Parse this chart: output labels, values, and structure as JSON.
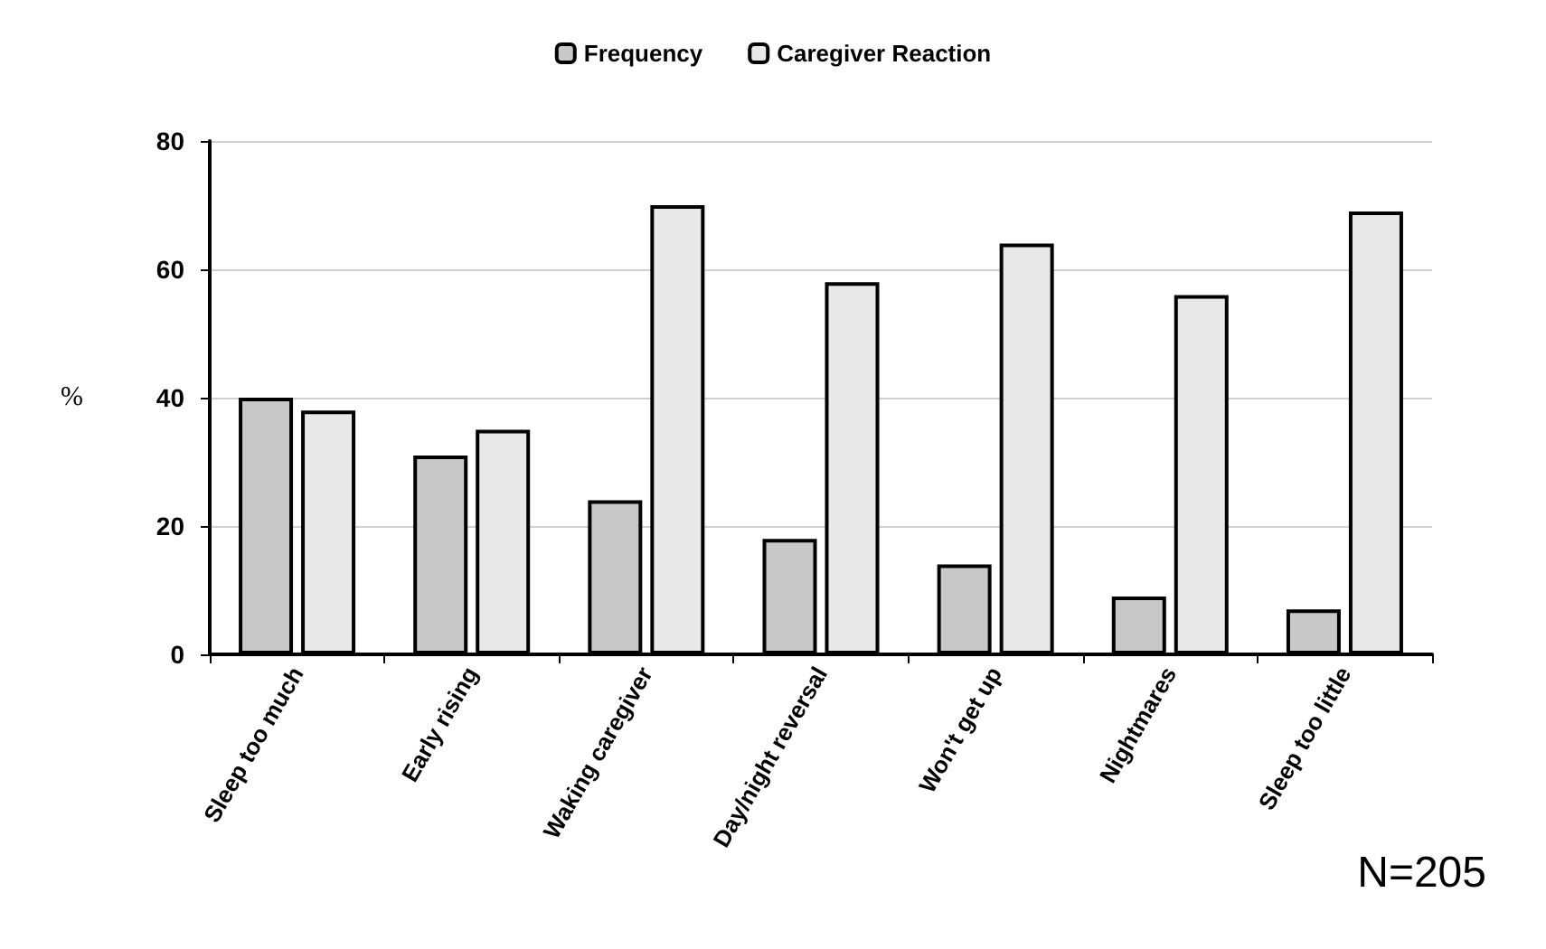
{
  "chart_data": {
    "type": "bar",
    "ylabel": "%",
    "categories": [
      "Sleep too much",
      "Early rising",
      "Waking caregiver",
      "Day/night reversal",
      "Won't get up",
      "Nightmares",
      "Sleep too little"
    ],
    "series": [
      {
        "name": "Frequency",
        "color": "#c8c8c8",
        "values": [
          40,
          31,
          24,
          18,
          14,
          9,
          7
        ]
      },
      {
        "name": "Caregiver Reaction",
        "color": "#e8e8e8",
        "values": [
          38,
          35,
          70,
          58,
          64,
          56,
          69
        ]
      }
    ],
    "ylim": [
      0,
      80
    ],
    "yticks": [
      0,
      20,
      40,
      60,
      80
    ],
    "grid": "y",
    "legend": "top",
    "annotations": [
      "N=205"
    ]
  }
}
